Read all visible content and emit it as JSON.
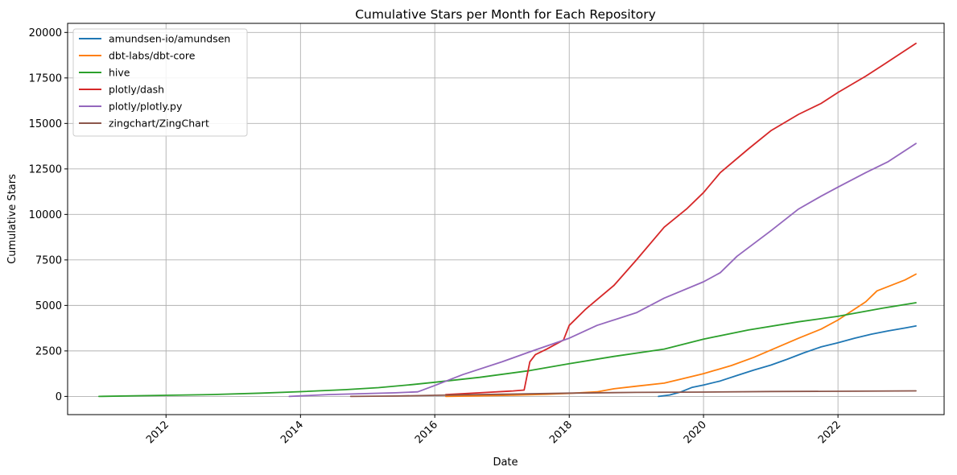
{
  "chart_data": {
    "type": "line",
    "title": "Cumulative Stars per Month for Each Repository",
    "xlabel": "Date",
    "ylabel": "Cumulative Stars",
    "xlim": [
      "2010-07-15",
      "2023-08-01"
    ],
    "ylim": [
      -1000,
      20500
    ],
    "x_ticks": [
      "2012-01-01",
      "2014-01-01",
      "2016-01-01",
      "2018-01-01",
      "2020-01-01",
      "2022-01-01"
    ],
    "x_tick_labels": [
      "2012",
      "2014",
      "2016",
      "2018",
      "2020",
      "2022"
    ],
    "y_ticks": [
      0,
      2500,
      5000,
      7500,
      10000,
      12500,
      15000,
      17500,
      20000
    ],
    "y_tick_labels": [
      "0",
      "2500",
      "5000",
      "7500",
      "10000",
      "12500",
      "15000",
      "17500",
      "20000"
    ],
    "grid": true,
    "legend_position": "top-left",
    "series": [
      {
        "name": "amundsen-io/amundsen",
        "color": "#1f77b4",
        "points": [
          [
            "2019-05-01",
            0
          ],
          [
            "2019-07-01",
            80
          ],
          [
            "2019-09-01",
            250
          ],
          [
            "2019-11-01",
            500
          ],
          [
            "2020-01-01",
            630
          ],
          [
            "2020-04-01",
            850
          ],
          [
            "2020-07-01",
            1150
          ],
          [
            "2020-10-01",
            1450
          ],
          [
            "2021-01-01",
            1720
          ],
          [
            "2021-04-01",
            2050
          ],
          [
            "2021-07-01",
            2400
          ],
          [
            "2021-10-01",
            2720
          ],
          [
            "2022-01-01",
            2950
          ],
          [
            "2022-04-01",
            3200
          ],
          [
            "2022-07-01",
            3420
          ],
          [
            "2022-10-01",
            3600
          ],
          [
            "2023-01-01",
            3760
          ],
          [
            "2023-03-01",
            3870
          ]
        ]
      },
      {
        "name": "dbt-labs/dbt-core",
        "color": "#ff7f0e",
        "points": [
          [
            "2016-03-01",
            0
          ],
          [
            "2016-09-01",
            30
          ],
          [
            "2017-03-01",
            70
          ],
          [
            "2017-09-01",
            120
          ],
          [
            "2018-01-01",
            170
          ],
          [
            "2018-06-01",
            250
          ],
          [
            "2018-09-01",
            420
          ],
          [
            "2019-01-01",
            560
          ],
          [
            "2019-06-01",
            730
          ],
          [
            "2019-09-01",
            950
          ],
          [
            "2020-01-01",
            1250
          ],
          [
            "2020-06-01",
            1700
          ],
          [
            "2020-10-01",
            2150
          ],
          [
            "2021-01-01",
            2550
          ],
          [
            "2021-06-01",
            3200
          ],
          [
            "2021-10-01",
            3700
          ],
          [
            "2022-01-01",
            4200
          ],
          [
            "2022-06-01",
            5200
          ],
          [
            "2022-08-01",
            5800
          ],
          [
            "2023-01-01",
            6400
          ],
          [
            "2023-03-01",
            6720
          ]
        ]
      },
      {
        "name": "hive",
        "color": "#2ca02c",
        "points": [
          [
            "2011-01-01",
            0
          ],
          [
            "2012-01-01",
            60
          ],
          [
            "2012-09-01",
            100
          ],
          [
            "2013-06-01",
            180
          ],
          [
            "2014-01-01",
            260
          ],
          [
            "2014-09-01",
            370
          ],
          [
            "2015-03-01",
            480
          ],
          [
            "2015-09-01",
            650
          ],
          [
            "2016-01-01",
            780
          ],
          [
            "2016-09-01",
            1050
          ],
          [
            "2017-06-01",
            1420
          ],
          [
            "2018-01-01",
            1800
          ],
          [
            "2018-09-01",
            2200
          ],
          [
            "2019-06-01",
            2600
          ],
          [
            "2020-01-01",
            3150
          ],
          [
            "2020-09-01",
            3650
          ],
          [
            "2021-06-01",
            4100
          ],
          [
            "2022-01-01",
            4400
          ],
          [
            "2022-09-01",
            4850
          ],
          [
            "2023-03-01",
            5150
          ]
        ]
      },
      {
        "name": "plotly/dash",
        "color": "#d62728",
        "points": [
          [
            "2016-03-01",
            100
          ],
          [
            "2016-09-01",
            200
          ],
          [
            "2017-03-01",
            300
          ],
          [
            "2017-05-01",
            350
          ],
          [
            "2017-06-01",
            1900
          ],
          [
            "2017-07-01",
            2300
          ],
          [
            "2017-09-01",
            2600
          ],
          [
            "2017-12-01",
            3100
          ],
          [
            "2018-01-01",
            3900
          ],
          [
            "2018-04-01",
            4800
          ],
          [
            "2018-09-01",
            6100
          ],
          [
            "2019-01-01",
            7500
          ],
          [
            "2019-06-01",
            9300
          ],
          [
            "2019-10-01",
            10300
          ],
          [
            "2020-01-01",
            11200
          ],
          [
            "2020-04-01",
            12300
          ],
          [
            "2020-09-01",
            13600
          ],
          [
            "2021-01-01",
            14600
          ],
          [
            "2021-06-01",
            15500
          ],
          [
            "2021-10-01",
            16100
          ],
          [
            "2022-01-01",
            16700
          ],
          [
            "2022-06-01",
            17600
          ],
          [
            "2022-09-01",
            18200
          ],
          [
            "2023-03-01",
            19400
          ]
        ]
      },
      {
        "name": "plotly/plotly.py",
        "color": "#9467bd",
        "points": [
          [
            "2013-11-01",
            0
          ],
          [
            "2014-06-01",
            100
          ],
          [
            "2015-06-01",
            200
          ],
          [
            "2015-10-01",
            250
          ],
          [
            "2016-01-01",
            600
          ],
          [
            "2016-06-01",
            1200
          ],
          [
            "2017-01-01",
            1900
          ],
          [
            "2017-06-01",
            2450
          ],
          [
            "2018-01-01",
            3200
          ],
          [
            "2018-06-01",
            3900
          ],
          [
            "2019-01-01",
            4600
          ],
          [
            "2019-06-01",
            5400
          ],
          [
            "2020-01-01",
            6300
          ],
          [
            "2020-04-01",
            6800
          ],
          [
            "2020-07-01",
            7700
          ],
          [
            "2021-01-01",
            9100
          ],
          [
            "2021-06-01",
            10300
          ],
          [
            "2021-10-01",
            11000
          ],
          [
            "2022-01-01",
            11500
          ],
          [
            "2022-06-01",
            12300
          ],
          [
            "2022-10-01",
            12900
          ],
          [
            "2023-03-01",
            13900
          ]
        ]
      },
      {
        "name": "zingchart/ZingChart",
        "color": "#8c564b",
        "points": [
          [
            "2014-10-01",
            0
          ],
          [
            "2015-06-01",
            20
          ],
          [
            "2016-01-01",
            60
          ],
          [
            "2017-01-01",
            120
          ],
          [
            "2018-01-01",
            180
          ],
          [
            "2019-01-01",
            220
          ],
          [
            "2020-01-01",
            240
          ],
          [
            "2021-01-01",
            270
          ],
          [
            "2022-01-01",
            285
          ],
          [
            "2023-03-01",
            305
          ]
        ]
      }
    ]
  }
}
